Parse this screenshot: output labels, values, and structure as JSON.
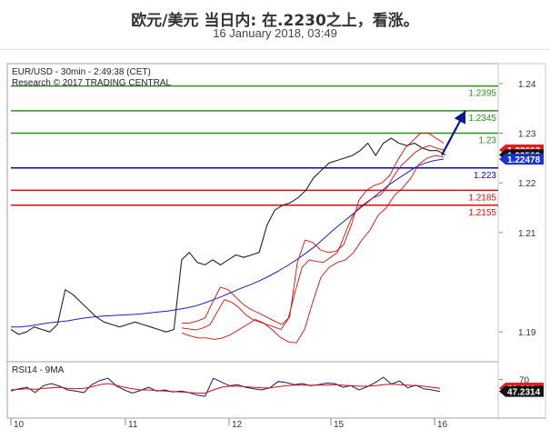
{
  "header": {
    "title": "欧元/美元 当日内: 在.2230之上，看涨。",
    "subtitle": "16 January 2018, 03:49"
  },
  "chart_data": [
    {
      "type": "line",
      "title": "EUR/USD - 30min - 2:49:38 (CET)",
      "subtitle": "Research © 2017 TRADING CENTRAL",
      "x_ticks": [
        "10",
        "11",
        "12",
        "15",
        "16"
      ],
      "y_ticks": [
        "1.24",
        "1.23",
        "1.22",
        "1.21",
        "1.19"
      ],
      "ylim": [
        1.184,
        1.244
      ],
      "levels": [
        {
          "label": "1.2395",
          "value": 1.2395,
          "color": "#2e8b1e"
        },
        {
          "label": "1.2345",
          "value": 1.2345,
          "color": "#2e8b1e"
        },
        {
          "label": "1.23",
          "value": 1.23,
          "color": "#2e8b1e"
        },
        {
          "label": "1.223",
          "value": 1.223,
          "color": "#0a0a96"
        },
        {
          "label": "1.2185",
          "value": 1.2185,
          "color": "#d01010"
        },
        {
          "label": "1.2155",
          "value": 1.2155,
          "color": "#d01010"
        }
      ],
      "price_tags": [
        {
          "label": "1.22663",
          "value": 1.22663,
          "bg": "#e02020",
          "fg": "#ffffff"
        },
        {
          "label": "1.22563",
          "value": 1.22563,
          "bg": "#111111",
          "fg": "#ffffff"
        },
        {
          "label": "1.22478",
          "value": 1.22478,
          "bg": "#1a33c8",
          "fg": "#ffffff"
        }
      ],
      "series": [
        {
          "values": [
            1.1905,
            1.1895,
            1.19,
            1.191,
            1.1905,
            1.19,
            1.1915,
            1.1985,
            1.1975,
            1.196,
            1.1945,
            1.193,
            1.192,
            1.1915,
            1.191,
            1.1915,
            1.192,
            1.1915,
            1.191,
            1.1905,
            1.19,
            1.1905,
            1.2045,
            1.206,
            1.204,
            1.2035,
            1.2045,
            1.2035,
            1.2045,
            1.2055,
            1.205,
            1.2055,
            1.206,
            1.2115,
            1.2145,
            1.2155,
            1.216,
            1.217,
            1.2185,
            1.221,
            1.2225,
            1.224,
            1.2245,
            1.225,
            1.2255,
            1.2265,
            1.228,
            1.2255,
            1.228,
            1.229,
            1.228,
            1.2275,
            1.228,
            1.227,
            1.2265,
            1.2265,
            1.2256
          ]
        },
        {
          "values": [
            1.191,
            1.191,
            1.1912,
            1.1915,
            1.1918,
            1.192,
            1.1922,
            1.1925,
            1.1928,
            1.193,
            1.1932,
            1.1933,
            1.1934,
            1.1935,
            1.1936,
            1.1938,
            1.194,
            1.1942,
            1.1945,
            1.1948,
            1.1952,
            1.1958,
            1.1965,
            1.1972,
            1.198,
            1.1988,
            1.1995,
            1.2003,
            1.2012,
            1.2022,
            1.2033,
            1.2045,
            1.2058,
            1.2072,
            1.2088,
            1.2105,
            1.212,
            1.2135,
            1.215,
            1.2165,
            1.218,
            1.2195,
            1.2208,
            1.222,
            1.2232,
            1.224,
            1.2245,
            1.2248
          ]
        },
        {
          "values": [
            1.1908,
            1.1906,
            1.1904,
            1.1908,
            1.1915,
            1.194,
            1.1965,
            1.196,
            1.195,
            1.1935,
            1.1925,
            1.192,
            1.1915,
            1.191,
            1.1905,
            1.1925,
            1.198,
            1.203,
            1.2045,
            1.2042,
            1.204,
            1.205,
            1.206,
            1.2095,
            1.213,
            1.215,
            1.216,
            1.217,
            1.2175,
            1.219,
            1.2215,
            1.2235,
            1.2248,
            1.2262,
            1.227,
            1.2275,
            1.227,
            1.2266
          ]
        },
        {
          "values": [
            1.1918,
            1.1918,
            1.1922,
            1.1928,
            1.196,
            1.199,
            1.1985,
            1.197,
            1.1955,
            1.1945,
            1.1938,
            1.193,
            1.1922,
            1.1915,
            1.193,
            1.204,
            1.2085,
            1.208,
            1.2065,
            1.206,
            1.2062,
            1.2075,
            1.2115,
            1.2165,
            1.2185,
            1.2195,
            1.22,
            1.2215,
            1.2245,
            1.227,
            1.2285,
            1.23,
            1.23,
            1.229,
            1.228
          ]
        },
        {
          "values": [
            1.1898,
            1.1892,
            1.1888,
            1.1888,
            1.1885,
            1.1888,
            1.1895,
            1.1905,
            1.1915,
            1.1925,
            1.1918,
            1.1905,
            1.189,
            1.188,
            1.1878,
            1.1905,
            1.196,
            1.201,
            1.203,
            1.204,
            1.2045,
            1.206,
            1.2085,
            1.2105,
            1.2135,
            1.215,
            1.2175,
            1.219,
            1.221,
            1.2238,
            1.225,
            1.2255,
            1.2252
          ]
        },
        {
          "values": [
            1.2256,
            1.2345
          ]
        }
      ]
    },
    {
      "type": "line",
      "title": "RSI14 - 9MA",
      "ylim": [
        0,
        100
      ],
      "y_ticks": [
        "70"
      ],
      "price_tags": [
        {
          "label": "53.363",
          "value": 53.363,
          "bg": "#e02020",
          "fg": "#ffffff"
        },
        {
          "label": "47.2314",
          "value": 47.2314,
          "bg": "#111111",
          "fg": "#ffffff"
        }
      ],
      "series": [
        {
          "color": "#1a1a60",
          "values": [
            48,
            52,
            55,
            45,
            58,
            62,
            57,
            50,
            48,
            45,
            60,
            68,
            72,
            58,
            50,
            44,
            49,
            55,
            48,
            50,
            46,
            48,
            45,
            40,
            38,
            72,
            65,
            58,
            60,
            55,
            52,
            50,
            54,
            66,
            64,
            60,
            62,
            58,
            60,
            63,
            62,
            55,
            58,
            50,
            56,
            64,
            74,
            61,
            67,
            54,
            59,
            52,
            50,
            47
          ]
        },
        {
          "color": "#cc1010",
          "values": [
            50,
            51,
            52,
            51,
            53,
            54,
            55,
            53,
            52,
            53,
            56,
            60,
            62,
            59,
            55,
            52,
            50,
            50,
            49,
            48,
            47,
            46,
            45,
            44,
            44,
            50,
            55,
            57,
            57,
            56,
            55,
            54,
            54,
            56,
            58,
            59,
            59,
            59,
            59,
            59,
            60,
            59,
            58,
            57,
            57,
            58,
            60,
            61,
            60,
            59,
            58,
            57,
            55,
            53
          ]
        }
      ]
    }
  ]
}
